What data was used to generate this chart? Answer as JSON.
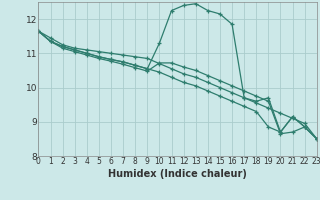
{
  "xlabel": "Humidex (Indice chaleur)",
  "background_color": "#cce8e8",
  "grid_color": "#aacccc",
  "line_color": "#2e7d6e",
  "xlim": [
    0,
    23
  ],
  "ylim": [
    8.0,
    12.5
  ],
  "yticks": [
    8,
    9,
    10,
    11,
    12
  ],
  "xticks": [
    0,
    1,
    2,
    3,
    4,
    5,
    6,
    7,
    8,
    9,
    10,
    11,
    12,
    13,
    14,
    15,
    16,
    17,
    18,
    19,
    20,
    21,
    22,
    23
  ],
  "series": [
    [
      11.65,
      11.45,
      11.25,
      11.15,
      11.1,
      11.05,
      11.0,
      10.95,
      10.9,
      10.85,
      10.7,
      10.55,
      10.4,
      10.3,
      10.15,
      10.0,
      9.85,
      9.7,
      9.55,
      9.4,
      9.25,
      9.1,
      8.95,
      8.5
    ],
    [
      11.65,
      11.35,
      11.2,
      11.1,
      11.0,
      10.9,
      10.82,
      10.75,
      10.65,
      10.55,
      10.45,
      10.3,
      10.15,
      10.05,
      9.9,
      9.75,
      9.6,
      9.45,
      9.3,
      8.85,
      8.7,
      9.15,
      8.85,
      8.5
    ],
    [
      11.65,
      11.35,
      11.2,
      11.1,
      11.0,
      10.9,
      10.82,
      10.75,
      10.65,
      10.55,
      11.3,
      12.25,
      12.4,
      12.45,
      12.25,
      12.15,
      11.85,
      9.7,
      9.6,
      9.7,
      8.7,
      9.15,
      8.85,
      8.5
    ],
    [
      11.65,
      11.35,
      11.15,
      11.05,
      10.95,
      10.85,
      10.77,
      10.68,
      10.58,
      10.48,
      10.72,
      10.72,
      10.6,
      10.5,
      10.35,
      10.2,
      10.05,
      9.9,
      9.75,
      9.6,
      8.65,
      8.7,
      8.85,
      8.5
    ]
  ]
}
